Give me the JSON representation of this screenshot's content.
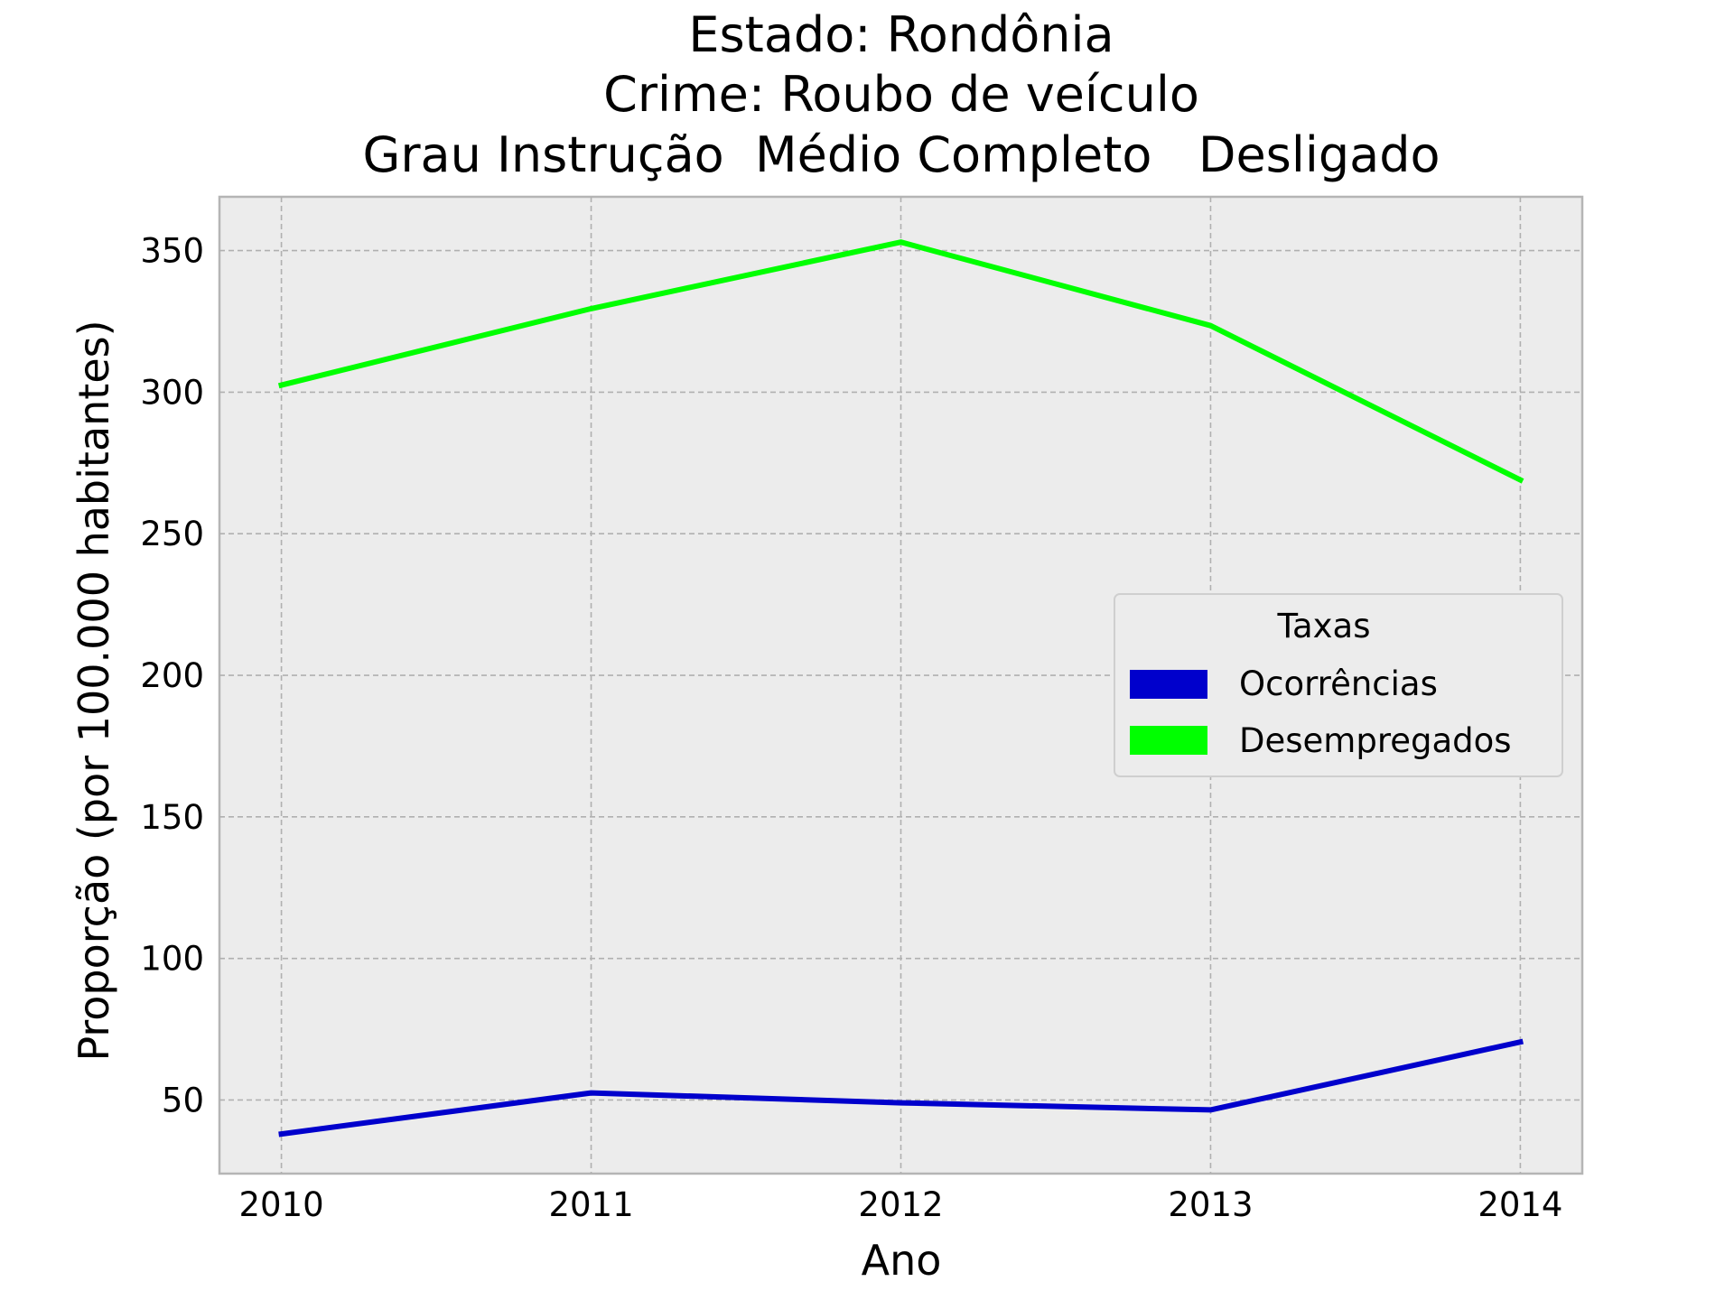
{
  "chart_data": {
    "type": "line",
    "title_lines": [
      "Estado: Rondônia",
      "Crime: Roubo de veículo",
      "Grau Instrução  Médio Completo   Desligado"
    ],
    "xlabel": "Ano",
    "ylabel": "Proporção (por 100.000 habitantes)",
    "x": [
      2010,
      2011,
      2012,
      2013,
      2014
    ],
    "x_tick_labels": [
      "2010",
      "2011",
      "2012",
      "2013",
      "2014"
    ],
    "xlim": [
      2009.8,
      2014.2
    ],
    "ylim": [
      24,
      369
    ],
    "y_ticks": [
      50,
      100,
      150,
      200,
      250,
      300,
      350
    ],
    "y_tick_labels": [
      "50",
      "100",
      "150",
      "200",
      "250",
      "300",
      "350"
    ],
    "grid": true,
    "legend": {
      "title": "Taxas",
      "placement": "center-right"
    },
    "series": [
      {
        "name": "Ocorrências",
        "color": "#0000cc",
        "values": [
          38,
          52.5,
          49,
          46.5,
          70.5
        ]
      },
      {
        "name": "Desempregados",
        "color": "#00ff00",
        "values": [
          302.5,
          329.5,
          353,
          323.5,
          269
        ]
      }
    ]
  }
}
